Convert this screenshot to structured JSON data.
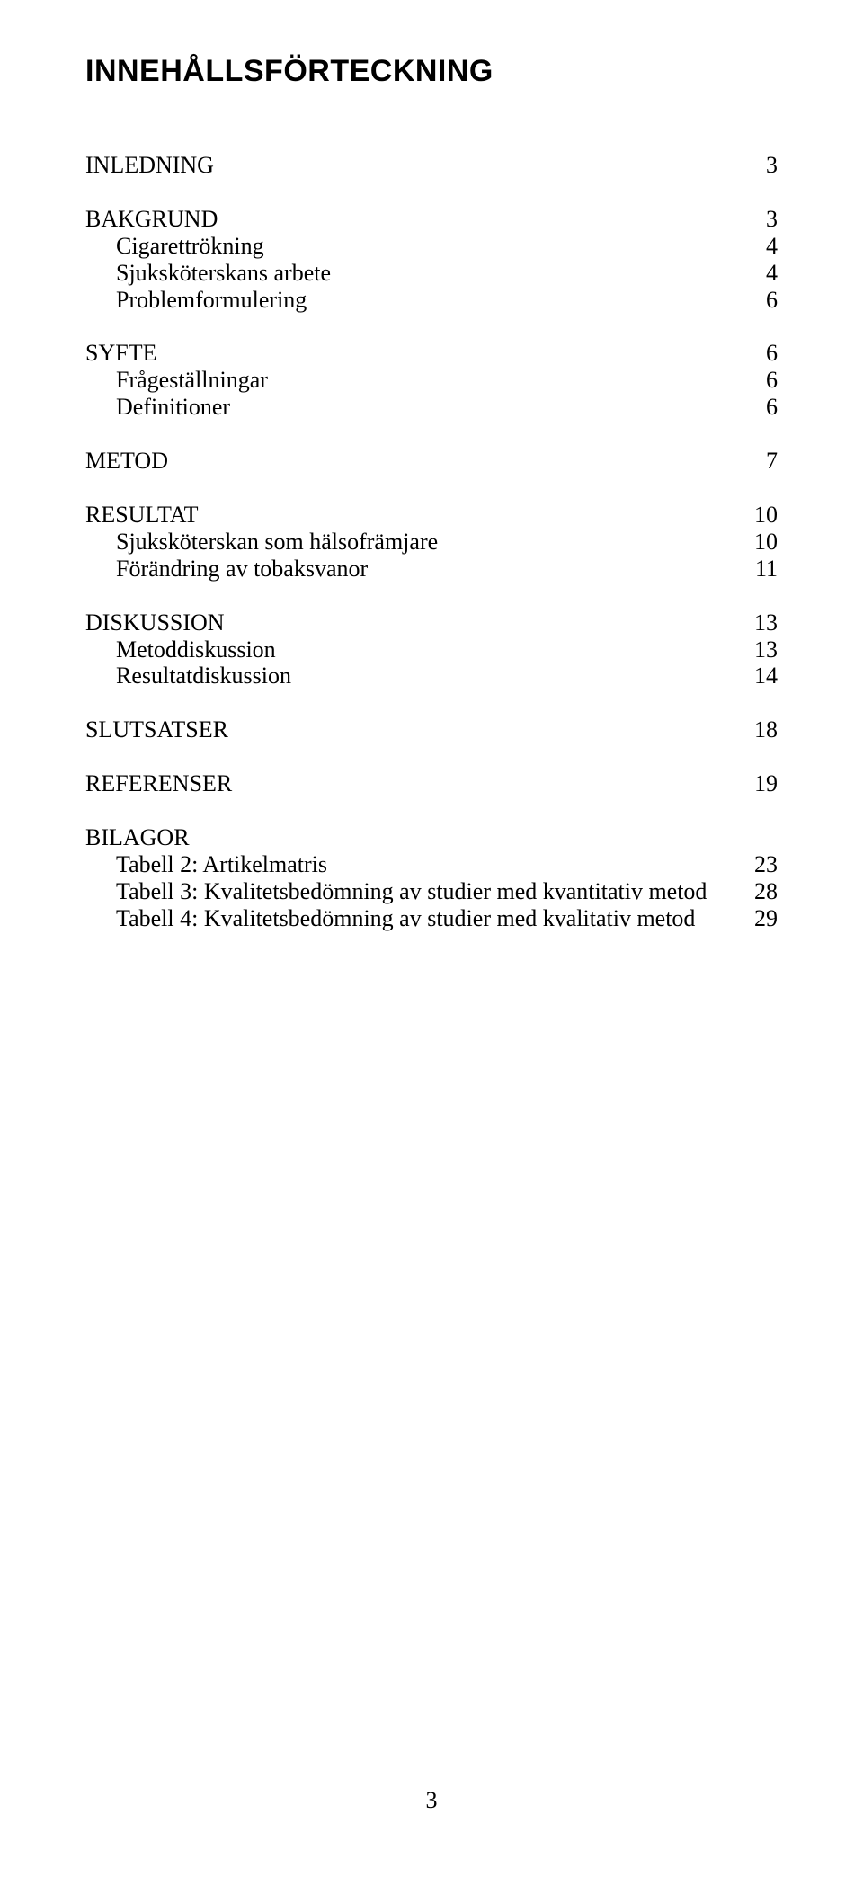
{
  "title": "INNEHÅLLSFÖRTECKNING",
  "toc": [
    {
      "label": "INLEDNING",
      "page": "3",
      "indent": false,
      "gapBefore": false
    },
    {
      "label": "BAKGRUND",
      "page": "3",
      "indent": false,
      "gapBefore": true
    },
    {
      "label": "Cigarettrökning",
      "page": "4",
      "indent": true,
      "gapBefore": false
    },
    {
      "label": "Sjuksköterskans arbete",
      "page": "4",
      "indent": true,
      "gapBefore": false
    },
    {
      "label": "Problemformulering",
      "page": "6",
      "indent": true,
      "gapBefore": false
    },
    {
      "label": "SYFTE",
      "page": "6",
      "indent": false,
      "gapBefore": true
    },
    {
      "label": "Frågeställningar",
      "page": "6",
      "indent": true,
      "gapBefore": false
    },
    {
      "label": "Definitioner",
      "page": "6",
      "indent": true,
      "gapBefore": false
    },
    {
      "label": "METOD",
      "page": "7",
      "indent": false,
      "gapBefore": true
    },
    {
      "label": "RESULTAT",
      "page": "10",
      "indent": false,
      "gapBefore": true
    },
    {
      "label": "Sjuksköterskan som hälsofrämjare",
      "page": "10",
      "indent": true,
      "gapBefore": false
    },
    {
      "label": "Förändring av tobaksvanor",
      "page": "11",
      "indent": true,
      "gapBefore": false
    },
    {
      "label": "DISKUSSION",
      "page": "13",
      "indent": false,
      "gapBefore": true
    },
    {
      "label": "Metoddiskussion",
      "page": "13",
      "indent": true,
      "gapBefore": false
    },
    {
      "label": "Resultatdiskussion",
      "page": "14",
      "indent": true,
      "gapBefore": false
    },
    {
      "label": "SLUTSATSER",
      "page": "18",
      "indent": false,
      "gapBefore": true
    },
    {
      "label": "REFERENSER",
      "page": "19",
      "indent": false,
      "gapBefore": true
    },
    {
      "label": "BILAGOR",
      "page": "",
      "indent": false,
      "gapBefore": true
    },
    {
      "label": "Tabell 2: Artikelmatris",
      "page": "23",
      "indent": true,
      "gapBefore": false
    },
    {
      "label": "Tabell 3: Kvalitetsbedömning av studier med kvantitativ metod",
      "page": "28",
      "indent": true,
      "gapBefore": false
    },
    {
      "label": "Tabell 4: Kvalitetsbedömning av studier med kvalitativ metod",
      "page": "29",
      "indent": true,
      "gapBefore": false
    }
  ],
  "pageNumber": "3",
  "style": {
    "titleFont": "Arial",
    "titleWeight": 700,
    "titleSizePx": 34,
    "bodyFont": "Times New Roman",
    "bodySizePx": 26,
    "indentPx": 34,
    "blockGapPx": 30,
    "textColor": "#000000",
    "background": "#ffffff"
  }
}
